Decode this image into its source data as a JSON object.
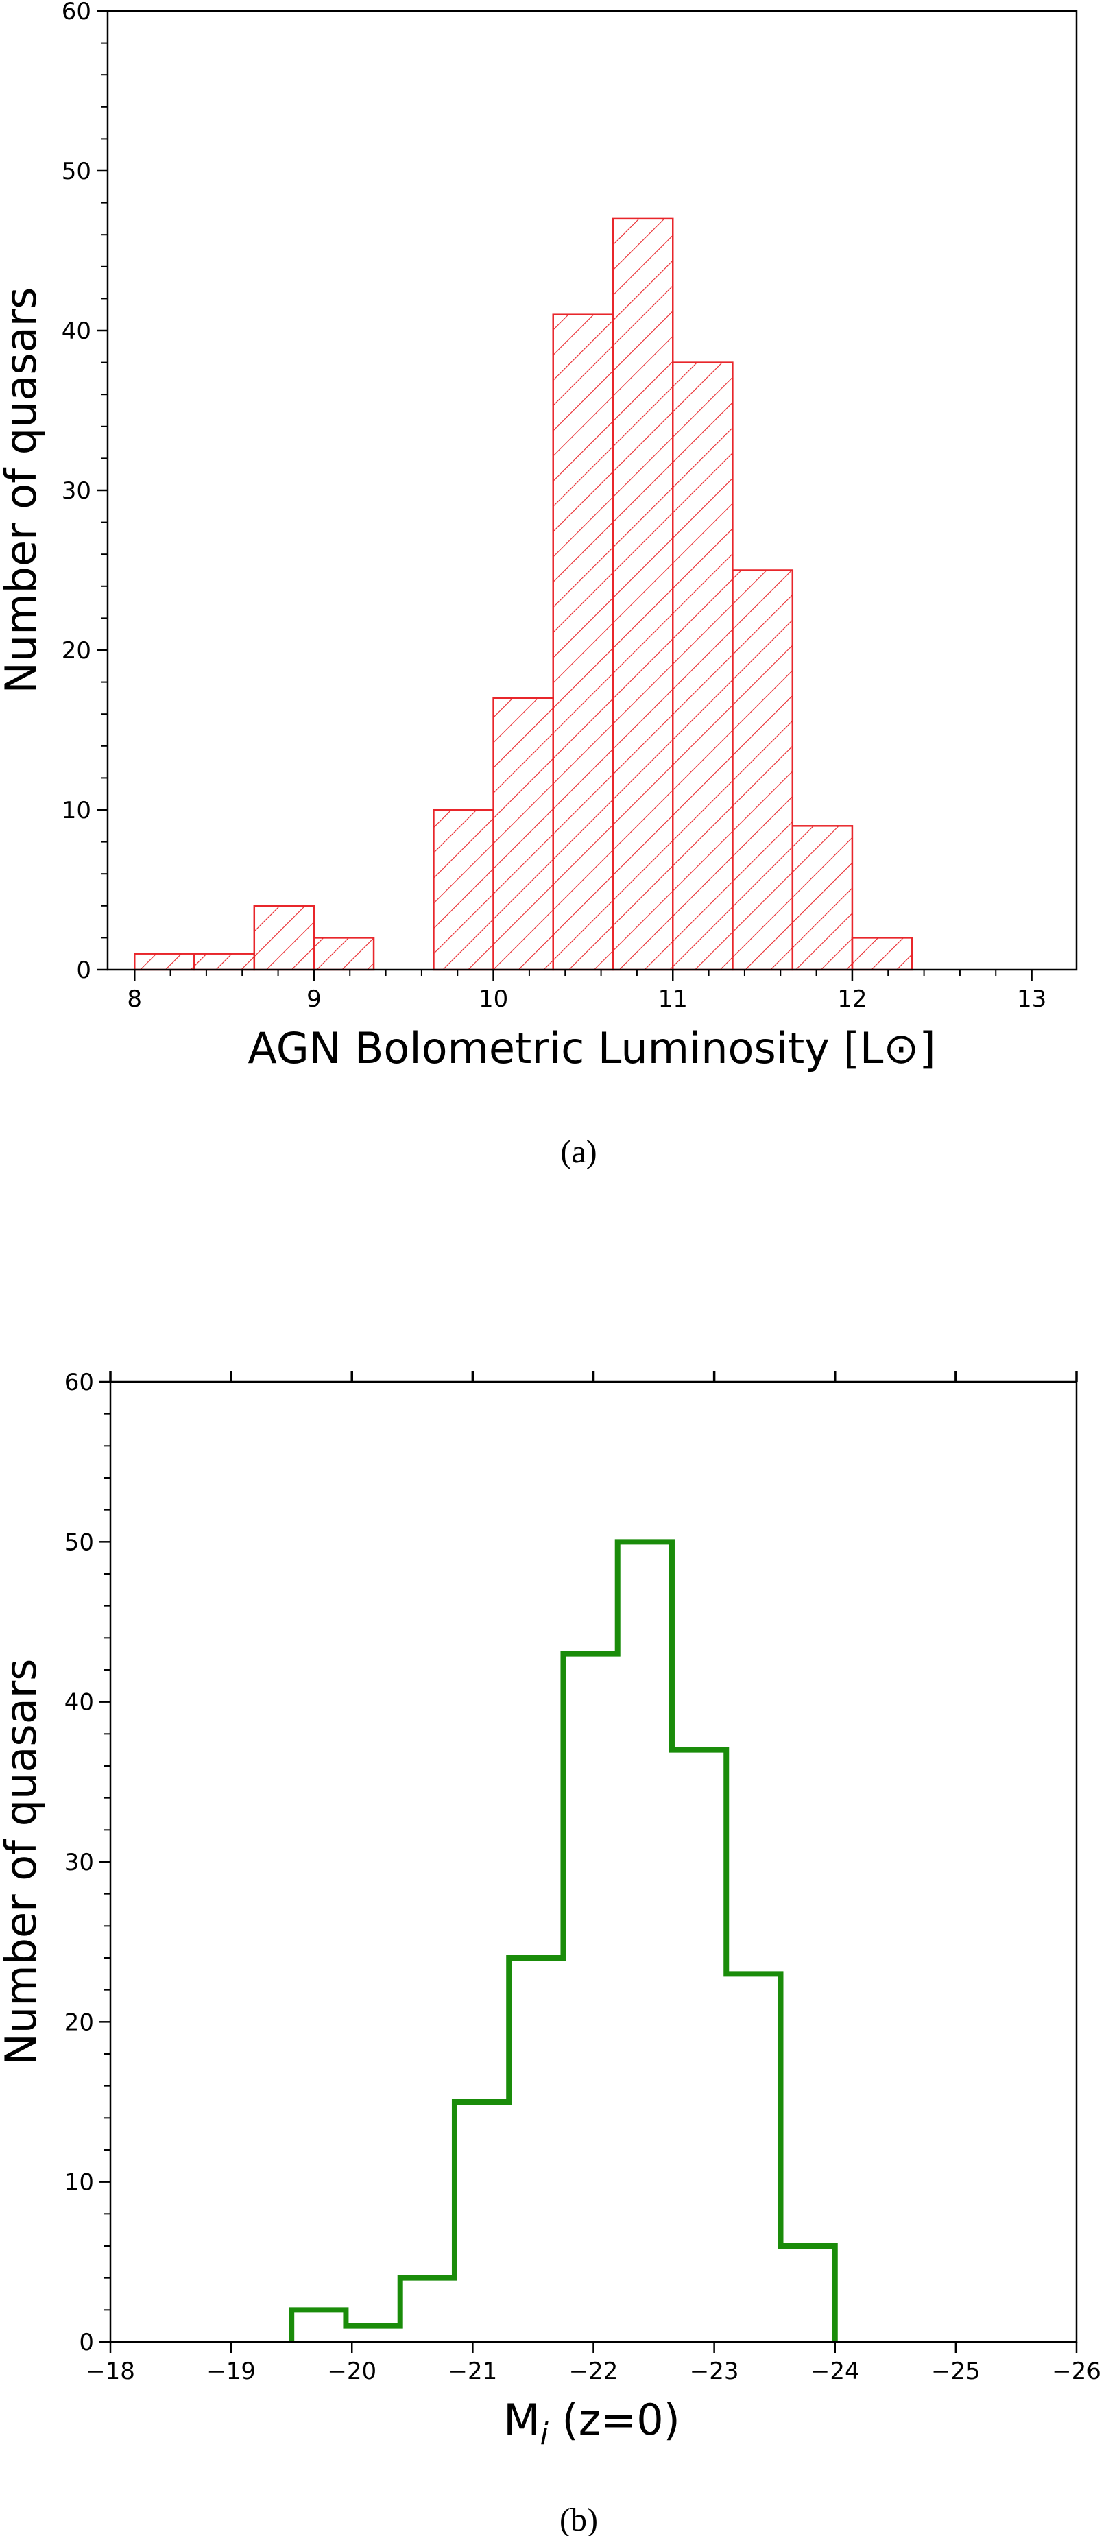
{
  "chart_data": [
    {
      "type": "bar",
      "caption": "(a)",
      "xlabel": "AGN Bolometric Luminosity [L⊙]",
      "ylabel": "Number of quasars",
      "xlim": [
        7.85,
        13.25
      ],
      "ylim": [
        0,
        60
      ],
      "xticks": [
        8,
        9,
        10,
        11,
        12,
        13
      ],
      "yticks": [
        0,
        10,
        20,
        30,
        40,
        50,
        60
      ],
      "bin_width": 0.333,
      "bin_edges": [
        8.0,
        8.333,
        8.667,
        9.0,
        9.333,
        9.667,
        10.0,
        10.333,
        10.667,
        11.0,
        11.333,
        11.667,
        12.0,
        12.333
      ],
      "values": [
        1,
        1,
        4,
        2,
        0,
        10,
        17,
        41,
        47,
        38,
        25,
        9,
        2
      ],
      "style": "hatched",
      "color": "#e8262b",
      "grid": false
    },
    {
      "type": "bar",
      "caption": "(b)",
      "xlabel": "M",
      "xlabel_sub": "i",
      "xlabel_rest": " (z=0)",
      "ylabel": "Number of quasars",
      "xlim": [
        -18,
        -26
      ],
      "ylim": [
        0,
        60
      ],
      "xticks": [
        -18,
        -19,
        -20,
        -21,
        -22,
        -23,
        -24,
        -25,
        -26
      ],
      "xtick_labels": [
        "−18",
        "−19",
        "−20",
        "−21",
        "−22",
        "−23",
        "−24",
        "−25",
        "−26"
      ],
      "yticks": [
        0,
        10,
        20,
        30,
        40,
        50,
        60
      ],
      "bin_edges": [
        -19.5,
        -19.95,
        -20.4,
        -20.85,
        -21.3,
        -21.75,
        -22.2,
        -22.65,
        -23.1,
        -23.55,
        -24.0
      ],
      "values": [
        2,
        1,
        4,
        15,
        24,
        43,
        50,
        37,
        23,
        6
      ],
      "style": "step",
      "color": "#1a8c0a",
      "grid": false
    }
  ]
}
